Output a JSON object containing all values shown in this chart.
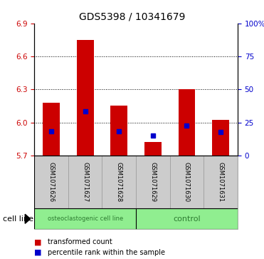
{
  "title": "GDS5398 / 10341679",
  "samples": [
    "GSM1071626",
    "GSM1071627",
    "GSM1071628",
    "GSM1071629",
    "GSM1071630",
    "GSM1071631"
  ],
  "bar_bottoms": [
    5.7,
    5.7,
    5.7,
    5.7,
    5.7,
    5.7
  ],
  "bar_tops": [
    6.18,
    6.75,
    6.15,
    5.82,
    6.3,
    6.02
  ],
  "blue_values": [
    5.92,
    6.1,
    5.92,
    5.88,
    5.97,
    5.91
  ],
  "ylim": [
    5.7,
    6.9
  ],
  "yticks_left": [
    5.7,
    6.0,
    6.3,
    6.6,
    6.9
  ],
  "yticks_right_vals": [
    5.7,
    6.0,
    6.3,
    6.6,
    6.9
  ],
  "yticks_right_labels": [
    "0",
    "25",
    "50",
    "75",
    "100%"
  ],
  "bar_color": "#cc0000",
  "blue_color": "#0000cc",
  "left_color": "#cc0000",
  "right_color": "#0000cc",
  "group1_label": "osteoclastogenic cell line",
  "group2_label": "control",
  "group1_indices": [
    0,
    1,
    2
  ],
  "group2_indices": [
    3,
    4,
    5
  ],
  "cell_line_label": "cell line",
  "legend1": "transformed count",
  "legend2": "percentile rank within the sample",
  "bar_width": 0.5,
  "blue_marker_size": 4,
  "title_fontsize": 10,
  "tick_fontsize": 7.5,
  "sample_fontsize": 6,
  "group_fontsize1": 6,
  "group_fontsize2": 8,
  "legend_fontsize": 7,
  "cell_line_fontsize": 8
}
